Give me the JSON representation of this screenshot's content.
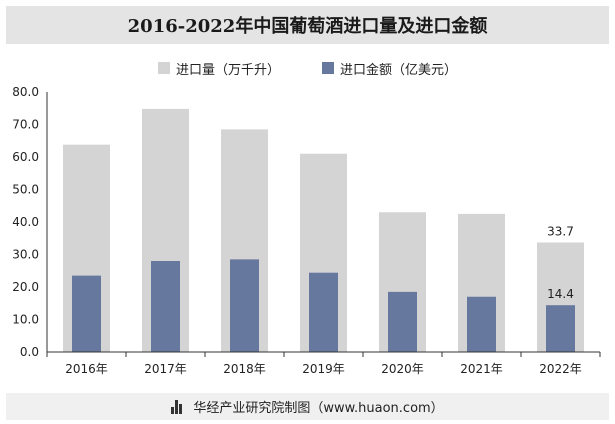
{
  "header": {
    "title": "2016-2022年中国葡萄酒进口量及进口金额"
  },
  "footer": {
    "source_text": "华经产业研究院制图（www.huaon.com）"
  },
  "chart_data": {
    "type": "bar",
    "title": "2016-2022年中国葡萄酒进口量及进口金额",
    "categories": [
      "2016年",
      "2017年",
      "2018年",
      "2019年",
      "2020年",
      "2021年",
      "2022年"
    ],
    "series": [
      {
        "name": "进口量（万千升）",
        "color": "#d4d4d4",
        "values": [
          63.8,
          74.8,
          68.5,
          61.0,
          43.0,
          42.5,
          33.7
        ]
      },
      {
        "name": "进口金额（亿美元）",
        "color": "#67789e",
        "values": [
          23.5,
          28.0,
          28.5,
          24.4,
          18.5,
          17.0,
          14.4
        ]
      }
    ],
    "data_labels": [
      {
        "series": 0,
        "index": 6,
        "text": "33.7"
      },
      {
        "series": 1,
        "index": 6,
        "text": "14.4"
      }
    ],
    "ylim": [
      0,
      80
    ],
    "yticks": [
      "0.0",
      "10.0",
      "20.0",
      "30.0",
      "40.0",
      "50.0",
      "60.0",
      "70.0",
      "80.0"
    ],
    "xlabel": "",
    "ylabel": "",
    "legend_position": "top",
    "grid": false
  }
}
